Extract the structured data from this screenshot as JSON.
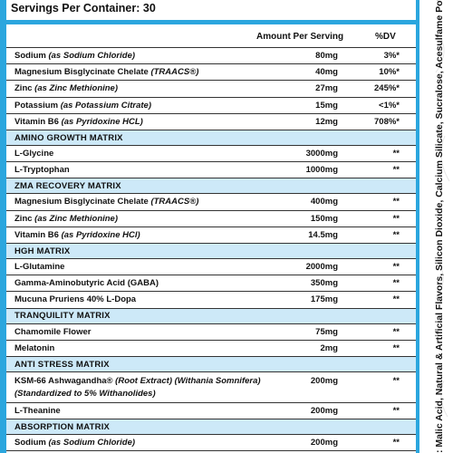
{
  "header": {
    "servings": "Servings Per Container: 30",
    "amount_heading": "Amount Per Serving",
    "dv_heading": "%DV"
  },
  "rows": [
    {
      "name": "Sodium",
      "detail": "(as Sodium Chloride)",
      "amount": "80mg",
      "dv": "3%*"
    },
    {
      "name": "Magnesium Bisglycinate Chelate",
      "detail": "(TRAACS®)",
      "amount": "40mg",
      "dv": "10%*"
    },
    {
      "name": "Zinc",
      "detail": "(as Zinc Methionine)",
      "amount": "27mg",
      "dv": "245%*"
    },
    {
      "name": "Potassium",
      "detail": "(as Potassium Citrate)",
      "amount": "15mg",
      "dv": "<1%*"
    },
    {
      "name": "Vitamin B6",
      "detail": "(as Pyridoxine HCL)",
      "amount": "12mg",
      "dv": "708%*"
    },
    {
      "section": "AMINO GROWTH MATRIX"
    },
    {
      "name": "L-Glycine",
      "amount": "3000mg",
      "dv": "**"
    },
    {
      "name": "L-Tryptophan",
      "amount": "1000mg",
      "dv": "**"
    },
    {
      "section": "ZMA RECOVERY MATRIX"
    },
    {
      "name": "Magnesium Bisglycinate Chelate",
      "detail": "(TRAACS®)",
      "amount": "400mg",
      "dv": "**"
    },
    {
      "name": "Zinc",
      "detail": "(as Zinc Methionine)",
      "amount": "150mg",
      "dv": "**"
    },
    {
      "name": "Vitamin B6",
      "detail": "(as Pyridoxine HCl)",
      "amount": "14.5mg",
      "dv": "**"
    },
    {
      "section": "HGH MATRIX"
    },
    {
      "name": "L-Glutamine",
      "amount": "2000mg",
      "dv": "**"
    },
    {
      "name": "Gamma-Aminobutyric Acid (GABA)",
      "amount": "350mg",
      "dv": "**"
    },
    {
      "name": "Mucuna Pruriens 40% L-Dopa",
      "amount": "175mg",
      "dv": "**"
    },
    {
      "section": "TRANQUILITY MATRIX"
    },
    {
      "name": "Chamomile Flower",
      "amount": "75mg",
      "dv": "**"
    },
    {
      "name": "Melatonin",
      "amount": "2mg",
      "dv": "**"
    },
    {
      "section": "ANTI STRESS MATRIX"
    },
    {
      "name": "KSM-66 Ashwagandha®",
      "detail": "(Root Extract) (Withania Somnifera)",
      "detail2": "(Standardized to 5% Withanolides)",
      "amount": "200mg",
      "dv": "**"
    },
    {
      "name": "L-Theanine",
      "amount": "200mg",
      "dv": "**"
    },
    {
      "section": "ABSORPTION MATRIX"
    },
    {
      "name": "Sodium",
      "detail": "(as Sodium Chloride)",
      "amount": "200mg",
      "dv": "**"
    }
  ],
  "side_text": ": Malic Acid, Natural & Artificial Flavors, Silicon Dioxide, Calcium Silicate, Sucralose, Acesulfame Potassium, FD"
}
